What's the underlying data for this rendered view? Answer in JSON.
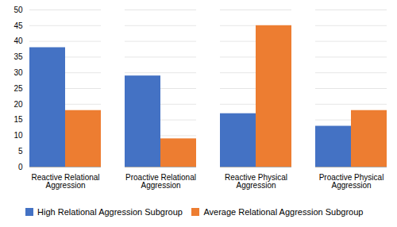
{
  "chart_data": {
    "type": "bar",
    "categories": [
      "Reactive Relational\nAggression",
      "Proactive Relational\nAggression",
      "Reactive Physical\nAggression",
      "Proactive Physical\nAggression"
    ],
    "series": [
      {
        "name": "High Relational Aggression Subgroup",
        "color": "#4472C4",
        "values": [
          38,
          29,
          17,
          13
        ]
      },
      {
        "name": "Average Relational Aggression Subgroup",
        "color": "#ED7D31",
        "values": [
          18,
          9,
          45,
          18
        ]
      }
    ],
    "ylim": [
      0,
      50
    ],
    "yticks": [
      0,
      5,
      10,
      15,
      20,
      25,
      30,
      35,
      40,
      45,
      50
    ],
    "grid": true,
    "legend": "bottom"
  }
}
